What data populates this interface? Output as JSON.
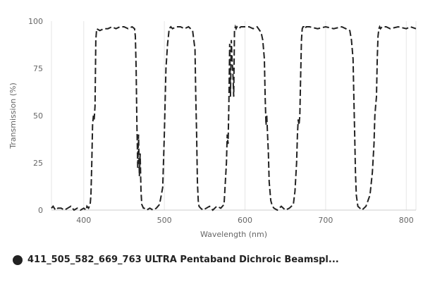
{
  "chart_data": {
    "type": "line",
    "xlabel": "Wavelength (nm)",
    "ylabel": "Transmission (%)",
    "xlim": [
      360,
      812
    ],
    "ylim": [
      0,
      100
    ],
    "xticks": [
      400,
      500,
      600,
      700,
      800
    ],
    "yticks": [
      0,
      25,
      50,
      75,
      100
    ],
    "grid": "vertical",
    "line_style": "dashed",
    "legend_position": "bottom-left",
    "series": [
      {
        "name": "411_505_582_669_763 ULTRA Pentaband Dichroic Beamspl...",
        "color": "#222222",
        "x": [
          360,
          362,
          365,
          368,
          372,
          376,
          380,
          384,
          388,
          392,
          396,
          400,
          403,
          404,
          406,
          407,
          408,
          409,
          410,
          411,
          412,
          413,
          414,
          415,
          416,
          420,
          425,
          430,
          435,
          440,
          445,
          450,
          455,
          460,
          463,
          464,
          465,
          466,
          467,
          468,
          469,
          470,
          471,
          472,
          473,
          474,
          475,
          478,
          482,
          486,
          490,
          494,
          498,
          500,
          502,
          504,
          505,
          506,
          508,
          510,
          515,
          520,
          525,
          530,
          535,
          538,
          539,
          540,
          541,
          542,
          543,
          545,
          548,
          552,
          556,
          560,
          565,
          570,
          574,
          577,
          578,
          579,
          580,
          581,
          582,
          583,
          584,
          585,
          586,
          587,
          588,
          589,
          590,
          592,
          595,
          600,
          605,
          610,
          615,
          620,
          622,
          624,
          625,
          626,
          627,
          628,
          629,
          630,
          632,
          634,
          636,
          640,
          645,
          650,
          655,
          660,
          662,
          664,
          665,
          666,
          667,
          668,
          669,
          670,
          671,
          672,
          673,
          674,
          676,
          680,
          690,
          700,
          710,
          720,
          725,
          730,
          732,
          734,
          735,
          736,
          737,
          738,
          740,
          745,
          750,
          755,
          758,
          760,
          761,
          762,
          763,
          764,
          765,
          766,
          767,
          768,
          770,
          775,
          780,
          790,
          800,
          805,
          812
        ],
        "values": [
          1,
          2,
          0,
          1,
          1,
          0,
          1,
          2,
          0,
          1,
          0,
          1,
          0,
          2,
          1,
          2,
          3,
          8,
          25,
          45,
          50,
          48,
          55,
          90,
          96,
          95,
          96,
          96,
          97,
          96,
          97,
          97,
          96,
          97,
          96,
          92,
          75,
          45,
          22,
          40,
          18,
          30,
          10,
          3,
          2,
          1,
          1,
          0,
          1,
          0,
          1,
          3,
          12,
          40,
          75,
          88,
          92,
          96,
          97,
          96,
          97,
          97,
          96,
          97,
          95,
          85,
          60,
          40,
          15,
          5,
          2,
          1,
          0,
          1,
          2,
          0,
          2,
          1,
          3,
          25,
          40,
          35,
          55,
          88,
          60,
          90,
          80,
          72,
          60,
          95,
          97,
          96,
          97,
          96,
          97,
          97,
          97,
          96,
          97,
          94,
          90,
          80,
          60,
          45,
          50,
          40,
          30,
          15,
          5,
          2,
          1,
          0,
          2,
          0,
          1,
          3,
          10,
          25,
          40,
          48,
          45,
          50,
          70,
          90,
          96,
          97,
          97,
          96,
          97,
          97,
          96,
          97,
          96,
          97,
          96,
          95,
          90,
          80,
          60,
          40,
          20,
          8,
          2,
          0,
          2,
          8,
          20,
          35,
          50,
          55,
          60,
          80,
          92,
          96,
          97,
          96,
          97,
          97,
          96,
          97,
          96,
          97,
          96
        ]
      }
    ]
  }
}
